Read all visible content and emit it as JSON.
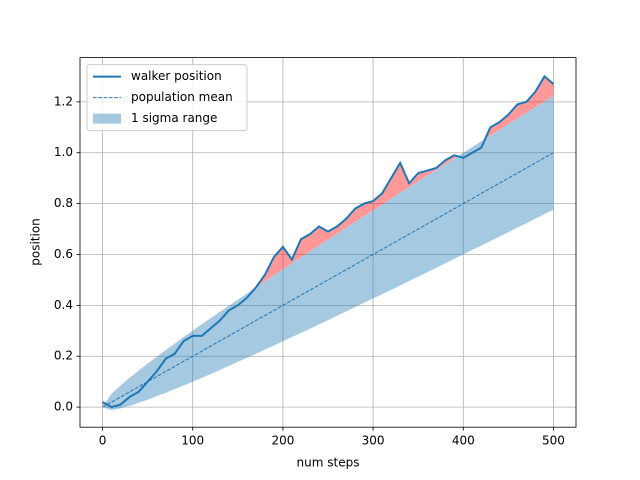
{
  "chart_data": {
    "type": "line",
    "x_label": "num steps",
    "y_label": "position",
    "x": [
      0,
      10,
      20,
      30,
      40,
      50,
      60,
      70,
      80,
      90,
      100,
      110,
      120,
      130,
      140,
      150,
      160,
      170,
      180,
      190,
      200,
      210,
      220,
      230,
      240,
      250,
      260,
      270,
      280,
      290,
      300,
      310,
      320,
      330,
      340,
      350,
      360,
      370,
      380,
      390,
      400,
      410,
      420,
      430,
      440,
      450,
      460,
      470,
      480,
      490,
      500
    ],
    "series": [
      {
        "name": "walker position",
        "color": "#1f77b4",
        "style": "solid",
        "values": [
          0.02,
          0.0,
          0.01,
          0.04,
          0.06,
          0.1,
          0.14,
          0.19,
          0.21,
          0.26,
          0.28,
          0.28,
          0.31,
          0.34,
          0.38,
          0.4,
          0.43,
          0.47,
          0.52,
          0.59,
          0.63,
          0.58,
          0.66,
          0.68,
          0.71,
          0.69,
          0.71,
          0.74,
          0.78,
          0.8,
          0.81,
          0.84,
          0.9,
          0.96,
          0.88,
          0.92,
          0.93,
          0.94,
          0.97,
          0.99,
          0.98,
          1.0,
          1.02,
          1.1,
          1.12,
          1.15,
          1.19,
          1.2,
          1.24,
          1.3,
          1.27
        ]
      },
      {
        "name": "population mean",
        "color": "#1f77b4",
        "style": "dashed",
        "values": [
          0,
          0.02,
          0.04,
          0.06,
          0.08,
          0.1,
          0.12,
          0.14,
          0.16,
          0.18,
          0.2,
          0.22,
          0.24,
          0.26,
          0.28,
          0.3,
          0.32,
          0.34,
          0.36,
          0.38,
          0.4,
          0.42,
          0.44,
          0.46,
          0.48,
          0.5,
          0.52,
          0.54,
          0.56,
          0.58,
          0.6,
          0.62,
          0.64,
          0.66,
          0.68,
          0.7,
          0.72,
          0.74,
          0.76,
          0.78,
          0.8,
          0.82,
          0.84,
          0.86,
          0.88,
          0.9,
          0.92,
          0.94,
          0.96,
          0.98,
          1.0
        ]
      },
      {
        "name": "1 sigma range",
        "color": "#1f77b4",
        "style": "band",
        "low": [
          0,
          -0.012,
          -0.005,
          0.005,
          0.017,
          0.029,
          0.043,
          0.056,
          0.071,
          0.085,
          0.1,
          0.115,
          0.13,
          0.146,
          0.162,
          0.178,
          0.194,
          0.21,
          0.226,
          0.242,
          0.259,
          0.275,
          0.292,
          0.308,
          0.325,
          0.342,
          0.359,
          0.376,
          0.393,
          0.41,
          0.427,
          0.444,
          0.461,
          0.478,
          0.496,
          0.513,
          0.53,
          0.548,
          0.565,
          0.583,
          0.6,
          0.618,
          0.635,
          0.653,
          0.67,
          0.688,
          0.706,
          0.723,
          0.741,
          0.759,
          0.776
        ],
        "high": [
          0,
          0.052,
          0.085,
          0.115,
          0.143,
          0.171,
          0.197,
          0.224,
          0.249,
          0.275,
          0.3,
          0.325,
          0.35,
          0.374,
          0.398,
          0.422,
          0.446,
          0.47,
          0.494,
          0.518,
          0.541,
          0.565,
          0.588,
          0.612,
          0.635,
          0.658,
          0.681,
          0.704,
          0.727,
          0.75,
          0.773,
          0.796,
          0.819,
          0.842,
          0.864,
          0.887,
          0.91,
          0.932,
          0.955,
          0.977,
          1.0,
          1.022,
          1.045,
          1.067,
          1.09,
          1.112,
          1.134,
          1.157,
          1.179,
          1.201,
          1.224
        ]
      }
    ],
    "above_range_color": "#ff0000",
    "xlim": [
      -25,
      525
    ],
    "xticks": [
      0,
      100,
      200,
      300,
      400,
      500
    ],
    "ylim": [
      -0.079,
      1.374
    ],
    "yticks": [
      {
        "value": 0,
        "label": "0.0"
      },
      0.2,
      0.4,
      0.6,
      0.8,
      {
        "value": 1,
        "label": "1.0"
      },
      1.2
    ],
    "grid": true,
    "legend": "upper left"
  }
}
